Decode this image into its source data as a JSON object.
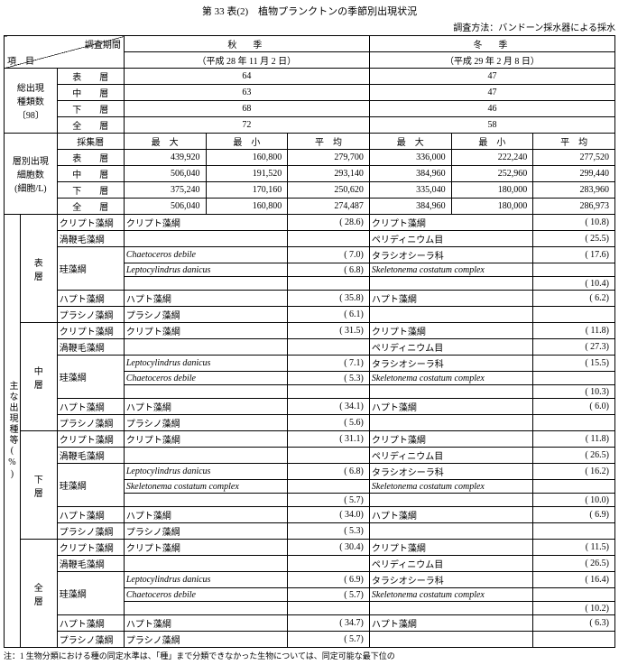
{
  "title": "第 33 表(2)　植物プランクトンの季節別出現状況",
  "method": "調査方法：バンドーン採水器による採水",
  "header": {
    "period_label": "調査期間",
    "item_label": "項　目",
    "season_a": "秋　季",
    "date_a": "（平成 28 年 11 月 2 日）",
    "season_w": "冬　季",
    "date_w": "（平成 29 年 2 月 8 日）"
  },
  "counts": {
    "label1": "総出現",
    "label2": "種類数",
    "label3": "〔98〕",
    "r": [
      {
        "layer": "表　　層",
        "a": "64",
        "w": "47"
      },
      {
        "layer": "中　　層",
        "a": "63",
        "w": "47"
      },
      {
        "layer": "下　　層",
        "a": "68",
        "w": "46"
      },
      {
        "layer": "全　　層",
        "a": "72",
        "w": "58"
      }
    ]
  },
  "cells": {
    "label1": "層別出現",
    "label2": "細胞数",
    "label3": "(細胞/L)",
    "h": {
      "col": "採集層",
      "max": "最　大",
      "min": "最　小",
      "avg": "平　均"
    },
    "r": [
      {
        "layer": "表　　層",
        "am": "439,920",
        "an": "160,800",
        "av": "279,700",
        "wm": "336,000",
        "wn": "222,240",
        "wv": "277,520"
      },
      {
        "layer": "中　　層",
        "am": "506,040",
        "an": "191,520",
        "av": "293,140",
        "wm": "384,960",
        "wn": "252,960",
        "wv": "299,440"
      },
      {
        "layer": "下　　層",
        "am": "375,240",
        "an": "170,160",
        "av": "250,620",
        "wm": "335,040",
        "wn": "180,000",
        "wv": "283,960"
      },
      {
        "layer": "全　　層",
        "am": "506,040",
        "an": "160,800",
        "av": "274,487",
        "wm": "384,960",
        "wn": "180,000",
        "wv": "286,973"
      }
    ]
  },
  "main": {
    "side": "主な出現種等(%)",
    "layers": [
      {
        "name": "表　　層",
        "rows": [
          {
            "cat": "クリプト藻綱",
            "a": "クリプト藻綱",
            "ap": "( 28.6)",
            "w": "クリプト藻綱",
            "wp": "( 10.8)"
          },
          {
            "cat": "渦鞭毛藻綱",
            "a": "",
            "ap": "",
            "w": "ペリディニウム目",
            "wp": "( 25.5)"
          },
          {
            "cat": "珪藻綱",
            "a": "Chaetoceros debile",
            "ai": 1,
            "ap": "(  7.0)",
            "w": "タラシオシーラ科",
            "wp": "( 17.6)"
          },
          {
            "cat": "",
            "a": "Leptocylindrus danicus",
            "ai": 1,
            "ap": "(  6.8)",
            "w": "Skeletonema costatum complex",
            "wi": 1,
            "wp": ""
          },
          {
            "cat": "",
            "a": "",
            "ap": "",
            "w": "",
            "wp": "( 10.4)"
          },
          {
            "cat": "ハプト藻綱",
            "a": "ハプト藻綱",
            "ap": "( 35.8)",
            "w": "ハプト藻綱",
            "wp": "(  6.2)"
          },
          {
            "cat": "プラシノ藻綱",
            "a": "プラシノ藻綱",
            "ap": "(  6.1)",
            "w": "",
            "wp": ""
          }
        ]
      },
      {
        "name": "中　　層",
        "rows": [
          {
            "cat": "クリプト藻綱",
            "a": "クリプト藻綱",
            "ap": "( 31.5)",
            "w": "クリプト藻綱",
            "wp": "( 11.8)"
          },
          {
            "cat": "渦鞭毛藻綱",
            "a": "",
            "ap": "",
            "w": "ペリディニウム目",
            "wp": "( 27.3)"
          },
          {
            "cat": "珪藻綱",
            "a": "Leptocylindrus danicus",
            "ai": 1,
            "ap": "(  7.1)",
            "w": "タラシオシーラ科",
            "wp": "( 15.5)"
          },
          {
            "cat": "",
            "a": "Chaetoceros debile",
            "ai": 1,
            "ap": "(  5.3)",
            "w": "Skeletonema costatum complex",
            "wi": 1,
            "wp": ""
          },
          {
            "cat": "",
            "a": "",
            "ap": "",
            "w": "",
            "wp": "( 10.3)"
          },
          {
            "cat": "ハプト藻綱",
            "a": "ハプト藻綱",
            "ap": "( 34.1)",
            "w": "ハプト藻綱",
            "wp": "(  6.0)"
          },
          {
            "cat": "プラシノ藻綱",
            "a": "プラシノ藻綱",
            "ap": "(  5.6)",
            "w": "",
            "wp": ""
          }
        ]
      },
      {
        "name": "下　　層",
        "rows": [
          {
            "cat": "クリプト藻綱",
            "a": "クリプト藻綱",
            "ap": "( 31.1)",
            "w": "クリプト藻綱",
            "wp": "( 11.8)"
          },
          {
            "cat": "渦鞭毛藻綱",
            "a": "",
            "ap": "",
            "w": "ペリディニウム目",
            "wp": "( 26.5)"
          },
          {
            "cat": "珪藻綱",
            "a": "Leptocylindrus danicus",
            "ai": 1,
            "ap": "(  6.8)",
            "w": "タラシオシーラ科",
            "wp": "( 16.2)"
          },
          {
            "cat": "",
            "a": "Skeletonema costatum complex",
            "ai": 1,
            "ap": "",
            "w": "Skeletonema costatum complex",
            "wi": 1,
            "wp": ""
          },
          {
            "cat": "",
            "a": "",
            "ap": "(  5.7)",
            "w": "",
            "wp": "( 10.0)"
          },
          {
            "cat": "ハプト藻綱",
            "a": "ハプト藻綱",
            "ap": "( 34.0)",
            "w": "ハプト藻綱",
            "wp": "(  6.9)"
          },
          {
            "cat": "プラシノ藻綱",
            "a": "プラシノ藻綱",
            "ap": "(  5.3)",
            "w": "",
            "wp": ""
          }
        ]
      },
      {
        "name": "全　　層",
        "rows": [
          {
            "cat": "クリプト藻綱",
            "a": "クリプト藻綱",
            "ap": "( 30.4)",
            "w": "クリプト藻綱",
            "wp": "( 11.5)"
          },
          {
            "cat": "渦鞭毛藻綱",
            "a": "",
            "ap": "",
            "w": "ペリディニウム目",
            "wp": "( 26.5)"
          },
          {
            "cat": "珪藻綱",
            "a": "Leptocylindrus danicus",
            "ai": 1,
            "ap": "(  6.9)",
            "w": "タラシオシーラ科",
            "wp": "( 16.4)"
          },
          {
            "cat": "",
            "a": "Chaetoceros debile",
            "ai": 1,
            "ap": "(  5.7)",
            "w": "Skeletonema costatum complex",
            "wi": 1,
            "wp": ""
          },
          {
            "cat": "",
            "a": "",
            "ap": "",
            "w": "",
            "wp": "( 10.2)"
          },
          {
            "cat": "ハプト藻綱",
            "a": "ハプト藻綱",
            "ap": "( 34.7)",
            "w": "ハプト藻綱",
            "wp": "(  6.3)"
          },
          {
            "cat": "プラシノ藻綱",
            "a": "プラシノ藻綱",
            "ap": "(  5.7)",
            "w": "",
            "wp": ""
          }
        ]
      }
    ]
  },
  "note": "注：1 生物分類における種の同定水準は、「種」まで分類できなかった生物については、同定可能な最下位の"
}
